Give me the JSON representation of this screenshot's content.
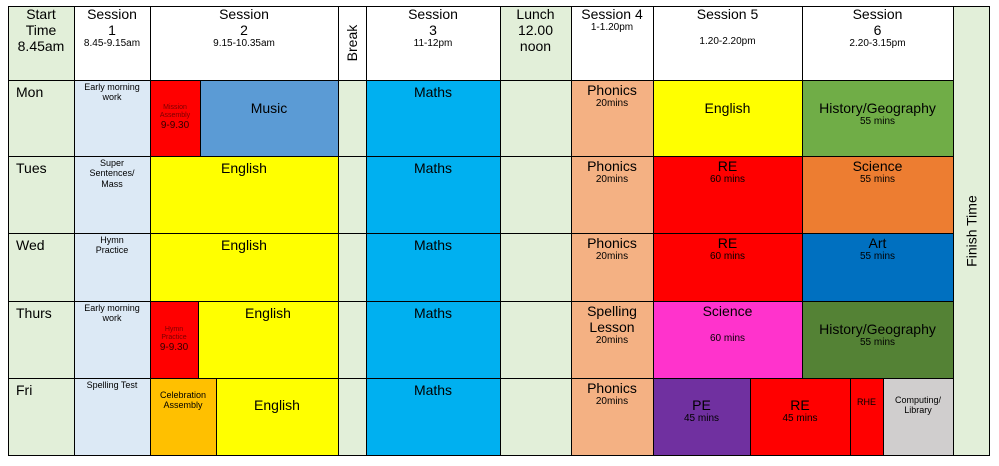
{
  "header": {
    "start": [
      "Start",
      "Time",
      "8.45am"
    ],
    "s1": {
      "title": "Session",
      "num": "1",
      "time": "8.45-9.15am"
    },
    "s2": {
      "title": "Session",
      "num": "2",
      "time": "9.15-10.35am"
    },
    "break": "Break",
    "s3": {
      "title": "Session",
      "num": "3",
      "time": "11-12pm"
    },
    "lunch": [
      "Lunch",
      "12.00",
      "noon"
    ],
    "s4": {
      "title": "Session 4",
      "time": "1-1.20pm"
    },
    "s5": {
      "title": "Session 5",
      "time": "1.20-2.20pm"
    },
    "s6": {
      "title": "Session",
      "num": "6",
      "time": "2.20-3.15pm"
    },
    "finish": "Finish Time"
  },
  "colors": {
    "green": "#e2efd9",
    "blue": "#dce9f5",
    "yellow": "#ffff00",
    "red": "#ff0000",
    "cyan": "#00b0f0",
    "peach": "#f4b183",
    "music": "#5b9bd5",
    "hist": "#70ad47",
    "hist_dark": "#548235",
    "orange": "#ed7d31",
    "art": "#0070c0",
    "pink": "#ff33cc",
    "purple": "#7030a0",
    "gold": "#ffc000",
    "grey": "#d0cece"
  },
  "rows": {
    "mon": {
      "day": "Mon",
      "s1": [
        "Early morning",
        "work"
      ],
      "mission": [
        "Mission",
        "Assembly"
      ],
      "mission_time": "9-9.30",
      "music": "Music",
      "s3": "Maths",
      "s4": "Phonics",
      "s4_dur": "20mins",
      "s5": "English",
      "s6": "History/Geography",
      "s6_dur": "55 mins"
    },
    "tues": {
      "day": "Tues",
      "s1": [
        "Super",
        "Sentences/",
        "Mass"
      ],
      "s2": "English",
      "s3": "Maths",
      "s4": "Phonics",
      "s4_dur": "20mins",
      "s5": "RE",
      "s5_dur": "60 mins",
      "s6": "Science",
      "s6_dur": "55 mins"
    },
    "wed": {
      "day": "Wed",
      "s1": [
        "Hymn",
        "Practice"
      ],
      "s2": "English",
      "s3": "Maths",
      "s4": "Phonics",
      "s4_dur": "20mins",
      "s5": "RE",
      "s5_dur": "60 mins",
      "s6": "Art",
      "s6_dur": "55 mins"
    },
    "thurs": {
      "day": "Thurs",
      "s1": [
        "Early morning",
        "work"
      ],
      "hymn": [
        "Hymn",
        "Practice"
      ],
      "hymn_time": "9-9.30",
      "s2": "English",
      "s3": "Maths",
      "s4": [
        "Spelling",
        "Lesson"
      ],
      "s4_dur": "20mins",
      "s5": "Science",
      "s5_dur": "60 mins",
      "s6": "History/Geography",
      "s6_dur": "55 mins"
    },
    "fri": {
      "day": "Fri",
      "s1": "Spelling Test",
      "celebration": [
        "Celebration",
        "Assembly"
      ],
      "s2": "English",
      "s3": "Maths",
      "s4": "Phonics",
      "s4_dur": "20mins",
      "pe": "PE",
      "pe_dur": "45 mins",
      "re": "RE",
      "re_dur": "45 mins",
      "rhe": "RHE",
      "computing": [
        "Computing/",
        "Library"
      ]
    }
  }
}
